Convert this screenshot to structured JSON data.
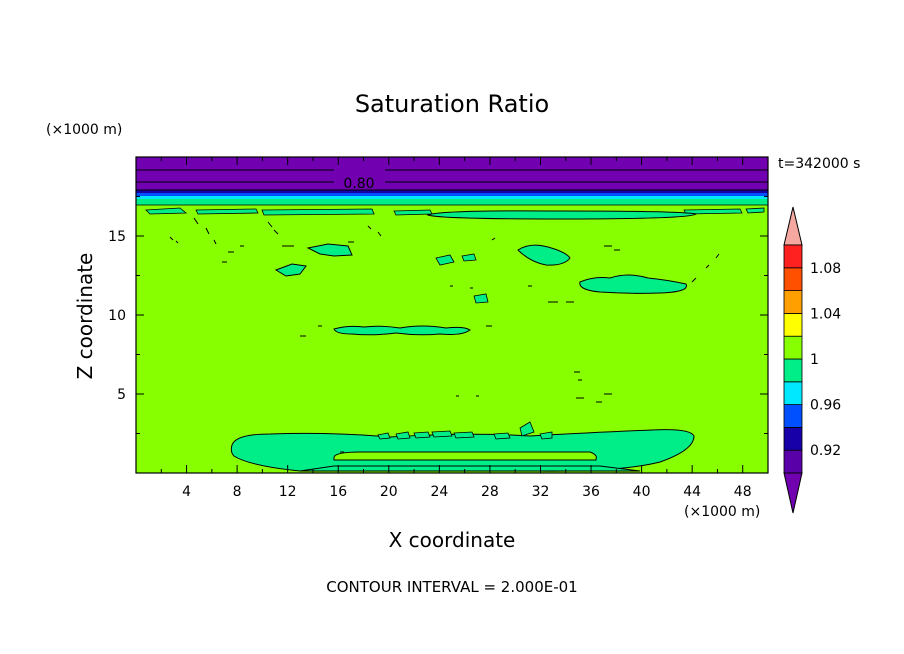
{
  "chart_data": {
    "type": "contour",
    "title": "Saturation Ratio",
    "xlabel": "X coordinate",
    "ylabel": "Z coordinate",
    "x_unit": "(×1000 m)",
    "z_unit": "(×1000 m)",
    "time_label": "t=342000 s",
    "footer": "CONTOUR INTERVAL = 2.000E-01",
    "xlim": [
      0,
      50
    ],
    "zlim": [
      0,
      20
    ],
    "x_ticks": [
      4,
      8,
      12,
      16,
      20,
      24,
      28,
      32,
      36,
      40,
      44,
      48
    ],
    "x_tick_labels": [
      "4",
      "8",
      "12",
      "16",
      "20",
      "24",
      "28",
      "32",
      "36",
      "40",
      "44",
      "48"
    ],
    "z_ticks": [
      5,
      10,
      15
    ],
    "z_tick_labels": [
      "5",
      "10",
      "15"
    ],
    "contour_label": "0.80",
    "colorbar": {
      "levels": [
        0.9,
        0.92,
        0.94,
        0.96,
        0.98,
        1.0,
        1.02,
        1.04,
        1.06,
        1.08,
        1.1
      ],
      "labels": [
        "0.92",
        "0.96",
        "1",
        "1.04",
        "1.08"
      ],
      "under_color": "#7100b0",
      "over_color": "#f4a8a0",
      "colors": [
        "#5a00a8",
        "#1800a8",
        "#0050ff",
        "#00e8ff",
        "#00ee88",
        "#88ff00",
        "#ffff00",
        "#ffa000",
        "#ff5000",
        "#ff2020"
      ]
    },
    "field_regions": [
      {
        "name": "upper-dry-layer",
        "value_range": "< 0.92",
        "color": "#7100b0",
        "z_range": [
          18.3,
          20
        ]
      },
      {
        "name": "background",
        "value_range": "1.00-1.02",
        "color": "#88ff00"
      },
      {
        "name": "moist-bands",
        "value_range": "0.98-1.00",
        "color": "#00ee88"
      }
    ],
    "colors": {
      "background": "#88ff00",
      "moist": "#00ee88",
      "dry": "#7100b0",
      "dark_blue": "#1800a8",
      "blue": "#0050ff",
      "cyan": "#00e8ff"
    }
  }
}
